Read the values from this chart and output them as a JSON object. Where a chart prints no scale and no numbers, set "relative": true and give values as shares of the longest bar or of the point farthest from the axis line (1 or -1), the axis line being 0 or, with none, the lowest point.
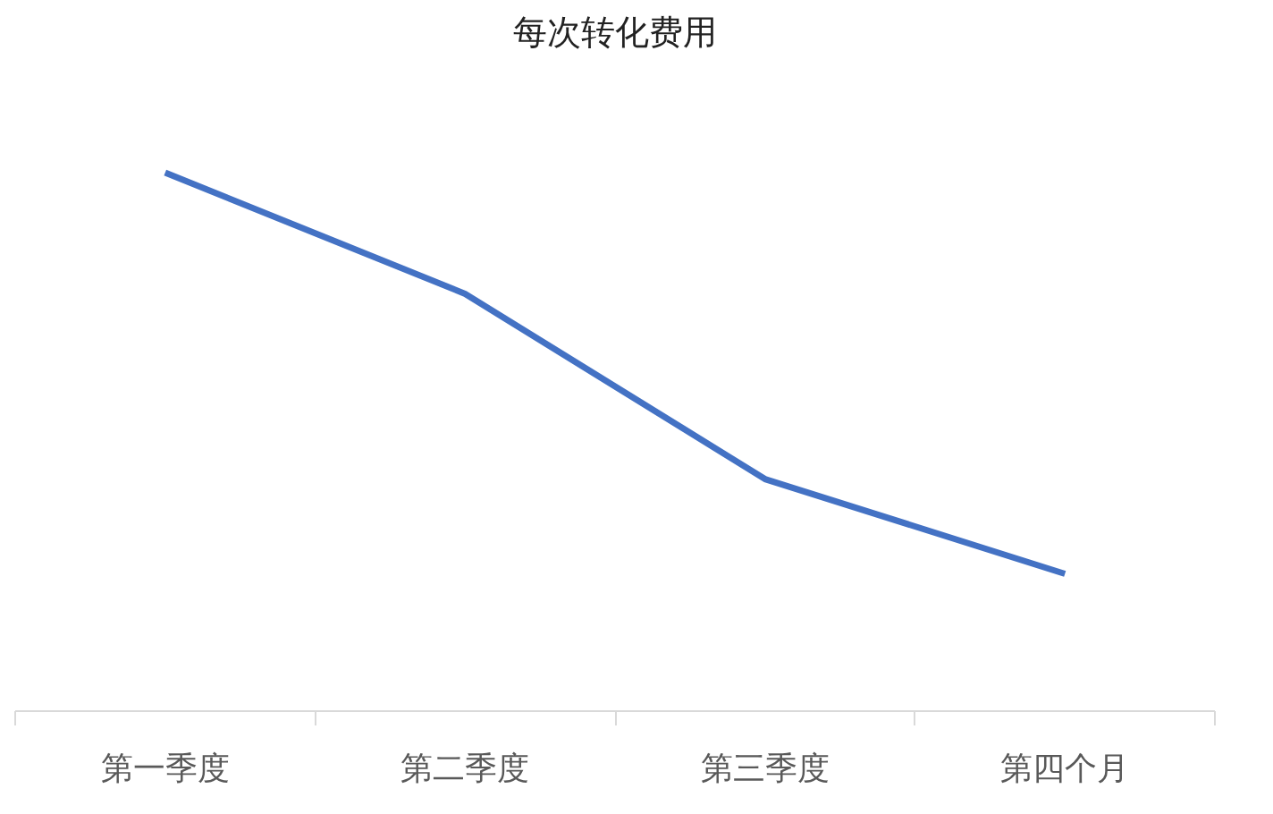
{
  "chart_data": {
    "type": "line",
    "title": "每次转化费用",
    "categories": [
      "第一季度",
      "第二季度",
      "第三季度",
      "第四个月"
    ],
    "relative": true,
    "series": [
      {
        "color": "#4472c4",
        "values": [
          1,
          0.775,
          0.431,
          0.255
        ]
      }
    ],
    "grid": false,
    "marker": "none",
    "line_style": "solid"
  }
}
